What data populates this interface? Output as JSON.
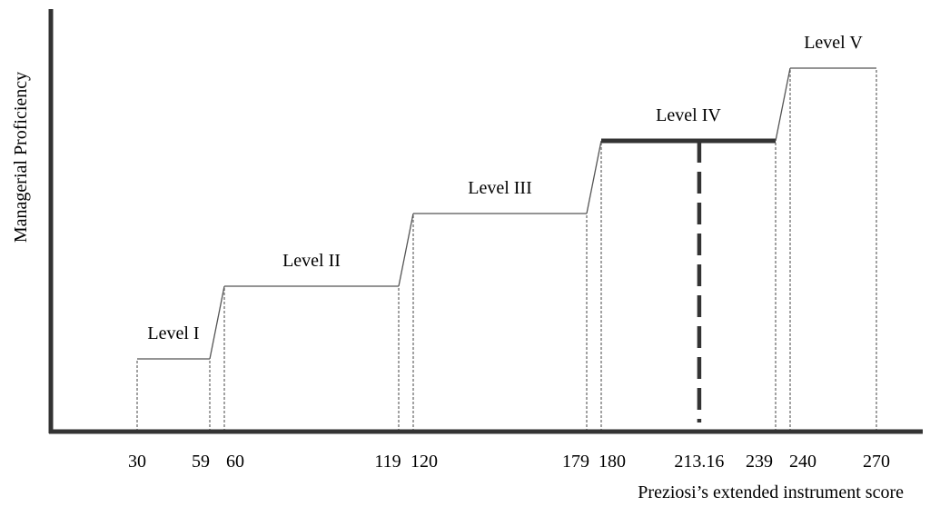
{
  "chart_data": {
    "type": "line",
    "title": "",
    "ylabel": "Managerial Proficiency",
    "xlabel": "Preziosi’s extended instrument score",
    "levels": [
      {
        "name": "Level I",
        "x_start": 30,
        "x_end": 59,
        "y": 1
      },
      {
        "name": "Level II",
        "x_start": 60,
        "x_end": 119,
        "y": 2
      },
      {
        "name": "Level III",
        "x_start": 120,
        "x_end": 179,
        "y": 3
      },
      {
        "name": "Level IV",
        "x_start": 180,
        "x_end": 239,
        "y": 4,
        "highlighted": true
      },
      {
        "name": "Level V",
        "x_start": 240,
        "x_end": 270,
        "y": 5
      }
    ],
    "x_ticks": [
      {
        "value": 30,
        "label": "30"
      },
      {
        "value": 59,
        "label": "59"
      },
      {
        "value": 60,
        "label": "60"
      },
      {
        "value": 119,
        "label": "119"
      },
      {
        "value": 120,
        "label": "120"
      },
      {
        "value": 179,
        "label": "179"
      },
      {
        "value": 180,
        "label": "180"
      },
      {
        "value": 213.16,
        "label": "213.16"
      },
      {
        "value": 239,
        "label": "239"
      },
      {
        "value": 240,
        "label": "240"
      },
      {
        "value": 270,
        "label": "270"
      }
    ],
    "marker": {
      "value": 213.16,
      "style": "dashed",
      "level": "Level IV"
    },
    "ylim": [
      0,
      5
    ],
    "grid": false,
    "line_color": "#555555",
    "axis_color": "#333333",
    "highlight_color": "#333333"
  }
}
